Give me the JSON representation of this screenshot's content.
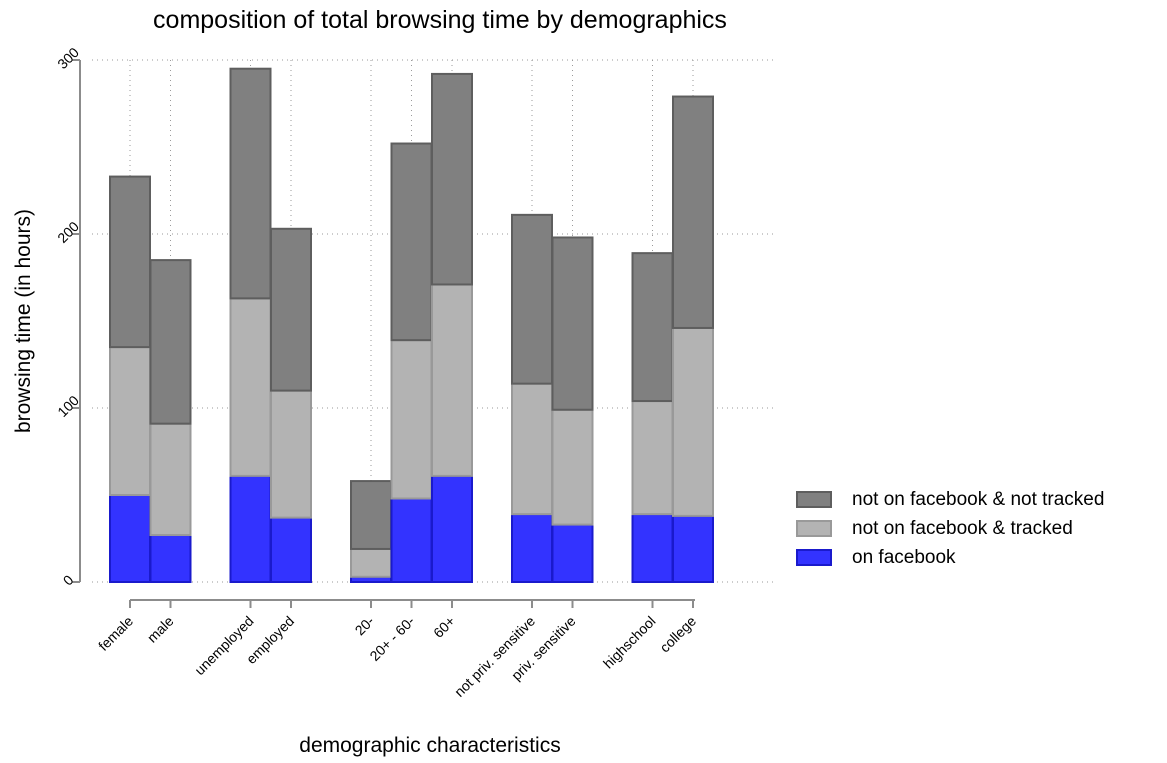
{
  "chart_data": {
    "type": "bar",
    "stacked": true,
    "title": "composition of total browsing time by demographics",
    "xlabel": "demographic characteristics",
    "ylabel": "browsing time (in hours)",
    "ylim": [
      0,
      300
    ],
    "yticks": [
      0,
      100,
      200,
      300
    ],
    "grid": true,
    "legend_position": "right",
    "groups": [
      [
        "female",
        "male"
      ],
      [
        "unemployed",
        "employed"
      ],
      [
        "20-",
        "20+ - 60-",
        "60+"
      ],
      [
        "not priv. sensitive",
        "priv. sensitive"
      ],
      [
        "highschool",
        "college"
      ]
    ],
    "categories": [
      "female",
      "male",
      "unemployed",
      "employed",
      "20-",
      "20+ - 60-",
      "60+",
      "not priv. sensitive",
      "priv. sensitive",
      "highschool",
      "college"
    ],
    "series": [
      {
        "name": "on facebook",
        "color": "#3333ff",
        "edge": "#1a1acc",
        "values": [
          50,
          27,
          61,
          37,
          3,
          48,
          61,
          39,
          33,
          39,
          38
        ]
      },
      {
        "name": "not on facebook & tracked",
        "color": "#b3b3b3",
        "edge": "#999999",
        "values": [
          85,
          64,
          102,
          73,
          16,
          91,
          110,
          75,
          66,
          65,
          108
        ]
      },
      {
        "name": "not on facebook & not tracked",
        "color": "#808080",
        "edge": "#5e5e5e",
        "values": [
          98,
          94,
          132,
          93,
          39,
          113,
          121,
          97,
          99,
          85,
          133
        ]
      }
    ]
  },
  "legend_order": [
    2,
    1,
    0
  ]
}
